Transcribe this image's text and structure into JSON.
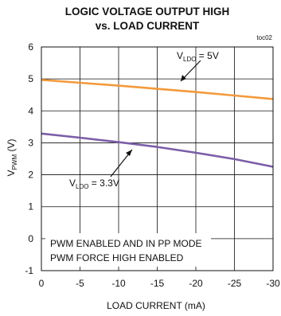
{
  "chart_data": {
    "type": "line",
    "title_line1": "LOGIC VOLTAGE OUTPUT HIGH",
    "title_line2": "vs. LOAD CURRENT",
    "figure_tag": "toc02",
    "xlabel": "LOAD CURRENT  (mA)",
    "ylabel_main": "V",
    "ylabel_sub": "PWM",
    "ylabel_unit": " (V)",
    "xlim": [
      0,
      -30
    ],
    "ylim": [
      -1,
      6
    ],
    "grid": true,
    "x_ticks": [
      0,
      -5,
      -10,
      -15,
      -20,
      -25,
      -30
    ],
    "x_tick_labels": [
      "0",
      "-5",
      "-10",
      "-15",
      "-20",
      "-25",
      "-30"
    ],
    "y_ticks": [
      -1,
      0,
      1,
      2,
      3,
      4,
      5,
      6
    ],
    "y_tick_labels": [
      "-1",
      "0",
      "1",
      "2",
      "3",
      "4",
      "5",
      "6"
    ],
    "series": [
      {
        "name_main": "V",
        "name_sub": "LDO",
        "name_value": " = 5V",
        "color": "#f39a3c",
        "x": [
          0,
          -5,
          -10,
          -15,
          -20,
          -25,
          -30
        ],
        "y": [
          4.97,
          4.88,
          4.79,
          4.69,
          4.59,
          4.48,
          4.37
        ]
      },
      {
        "name_main": "V",
        "name_sub": "LDO",
        "name_value": " = 3.3V",
        "color": "#7b5ea7",
        "x": [
          0,
          -5,
          -10,
          -15,
          -20,
          -25,
          -30
        ],
        "y": [
          3.29,
          3.16,
          3.02,
          2.87,
          2.69,
          2.49,
          2.25
        ]
      }
    ],
    "annotations": [
      "PWM ENABLED AND IN PP MODE",
      "PWM FORCE HIGH ENABLED"
    ]
  }
}
